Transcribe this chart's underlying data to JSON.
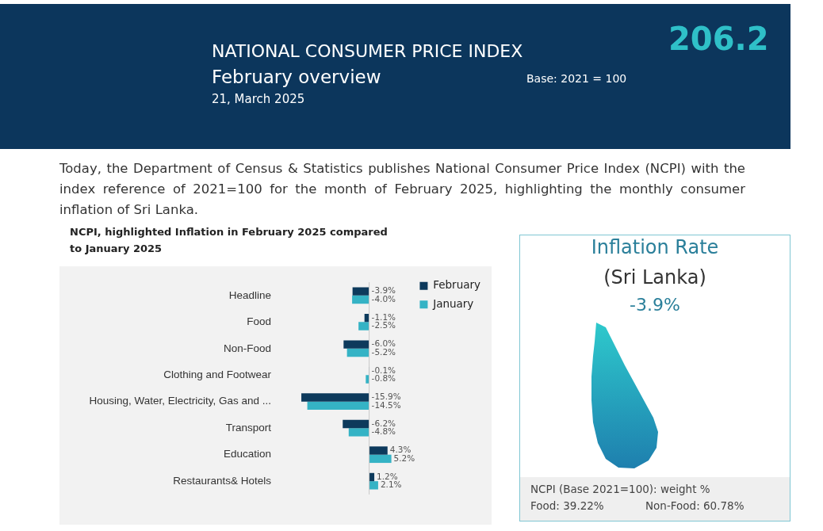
{
  "chart_data": {
    "type": "bar",
    "orientation": "horizontal",
    "title": "NATIONAL CONSUMER PRICE INDEX",
    "subtitle": "February overview",
    "categories": [
      "Headline",
      "Food",
      "Non-Food",
      "Clothing and Footwear",
      "Housing, Water, Electricity, Gas and ...",
      "Transport",
      "Education",
      "Restaurants& Hotels"
    ],
    "series": [
      {
        "name": "February",
        "color": "#0d3a5c",
        "values": [
          -3.9,
          -1.1,
          -6.0,
          -0.1,
          -15.9,
          -6.2,
          4.3,
          1.2
        ],
        "value_labels": [
          "-3.9%",
          "-1.1%",
          "-6.0%",
          "-0.1%",
          "-15.9%",
          "-6.2%",
          "4.3%",
          "1.2%"
        ]
      },
      {
        "name": "January",
        "color": "#35b3c5",
        "values": [
          -4.0,
          -2.5,
          -5.2,
          -0.8,
          -14.5,
          -4.8,
          5.2,
          2.1
        ],
        "value_labels": [
          "-4.0%",
          "-2.5%",
          "-5.2%",
          "-0.8%",
          "-14.5%",
          "-4.8%",
          "5.2%",
          "2.1%"
        ]
      }
    ],
    "legend": "top right",
    "annotations": [
      "21, March 2025",
      "Base: 2021 = 100",
      "206.2",
      "Today, the Department of Census & Statistics publishes National Consumer Price Index (NCPI) with the index reference of 2021=100 for the month of February 2025, highlighting the monthly consumer inflation of Sri Lanka.",
      "NCPI, highlighted Inflation in February 2025 compared to January 2025",
      "Inflation Rate",
      "(Sri Lanka)",
      "-3.9%",
      "NCPI (Base 2021=100): weight %",
      "Food: 39.22%",
      "Non-Food: 60.78%"
    ]
  }
}
